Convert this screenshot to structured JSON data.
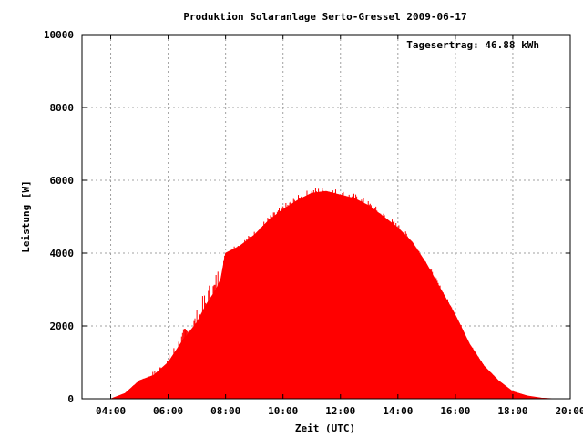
{
  "chart_data": {
    "type": "area",
    "title": "Produktion Solaranlage Serto-Gressel 2009-06-17",
    "xlabel": "Zeit (UTC)",
    "ylabel": "Leistung [W]",
    "annotation": "Tagesertrag: 46.88 kWh",
    "xlim": [
      "03:00",
      "20:00"
    ],
    "ylim": [
      0,
      10000
    ],
    "x_ticks": [
      "04:00",
      "06:00",
      "08:00",
      "10:00",
      "12:00",
      "14:00",
      "16:00",
      "18:00",
      "20:00"
    ],
    "y_ticks": [
      "0",
      "2000",
      "4000",
      "6000",
      "8000",
      "10000"
    ],
    "grid": true,
    "fill_color": "#ff0000",
    "series": [
      {
        "x": [
          "04:00",
          "04:30",
          "05:00",
          "05:30",
          "06:00",
          "06:30",
          "07:00",
          "07:20",
          "07:40",
          "07:50",
          "08:00",
          "08:30",
          "09:00",
          "09:30",
          "10:00",
          "10:30",
          "11:00",
          "11:30",
          "12:00",
          "12:30",
          "13:00",
          "13:30",
          "14:00",
          "14:30",
          "15:00",
          "15:30",
          "16:00",
          "16:30",
          "17:00",
          "17:30",
          "18:00",
          "18:30",
          "19:00",
          "19:30"
        ],
        "values": [
          0,
          150,
          500,
          650,
          1000,
          1600,
          2100,
          2600,
          3000,
          3300,
          4000,
          4200,
          4500,
          4900,
          5200,
          5450,
          5650,
          5700,
          5600,
          5500,
          5300,
          5000,
          4700,
          4300,
          3700,
          3000,
          2300,
          1500,
          900,
          500,
          200,
          80,
          20,
          0
        ]
      }
    ]
  }
}
